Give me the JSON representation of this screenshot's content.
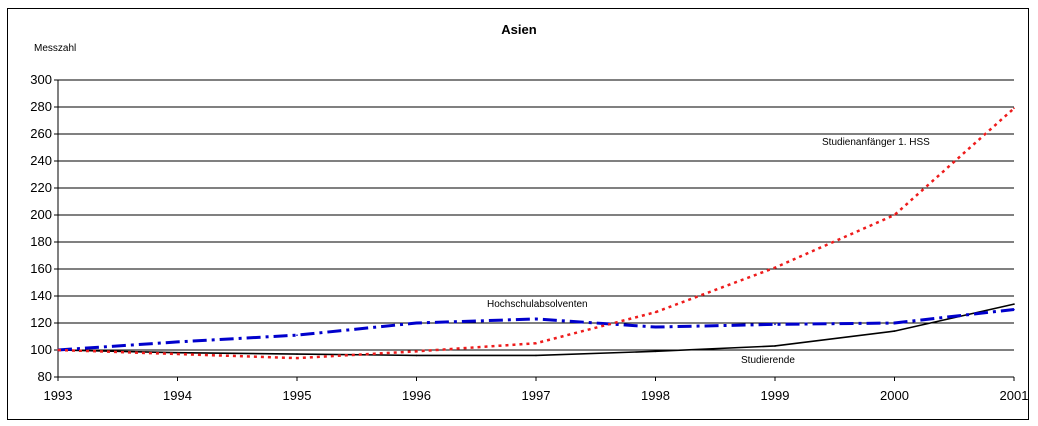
{
  "chart_data": {
    "type": "line",
    "title": "Asien",
    "ylabel": "Messzahl",
    "xlabel": "",
    "x": [
      1993,
      1994,
      1995,
      1996,
      1997,
      1998,
      1999,
      2000,
      2001
    ],
    "xticks": [
      "1993",
      "1994",
      "1995",
      "1996",
      "1997",
      "1998",
      "1999",
      "2000",
      "2001"
    ],
    "ylim": [
      80,
      300
    ],
    "yticks": [
      "80",
      "100",
      "120",
      "140",
      "160",
      "180",
      "200",
      "220",
      "240",
      "260",
      "280",
      "300"
    ],
    "grid": "horizontal",
    "legend": "inline labels",
    "series": [
      {
        "name": "Studierende",
        "color": "#000000",
        "style": "solid",
        "values": [
          100,
          98,
          97,
          96,
          96,
          99,
          103,
          114,
          134
        ]
      },
      {
        "name": "Hochschulabsolventen",
        "color": "#0000cc",
        "style": "dashdot",
        "values": [
          100,
          106,
          111,
          120,
          123,
          117,
          119,
          120,
          130
        ]
      },
      {
        "name": "Studienanfänger 1. HSS",
        "color": "#ee1c1c",
        "style": "dotted",
        "values": [
          100,
          97,
          94,
          99,
          105,
          128,
          161,
          200,
          279
        ]
      }
    ]
  }
}
